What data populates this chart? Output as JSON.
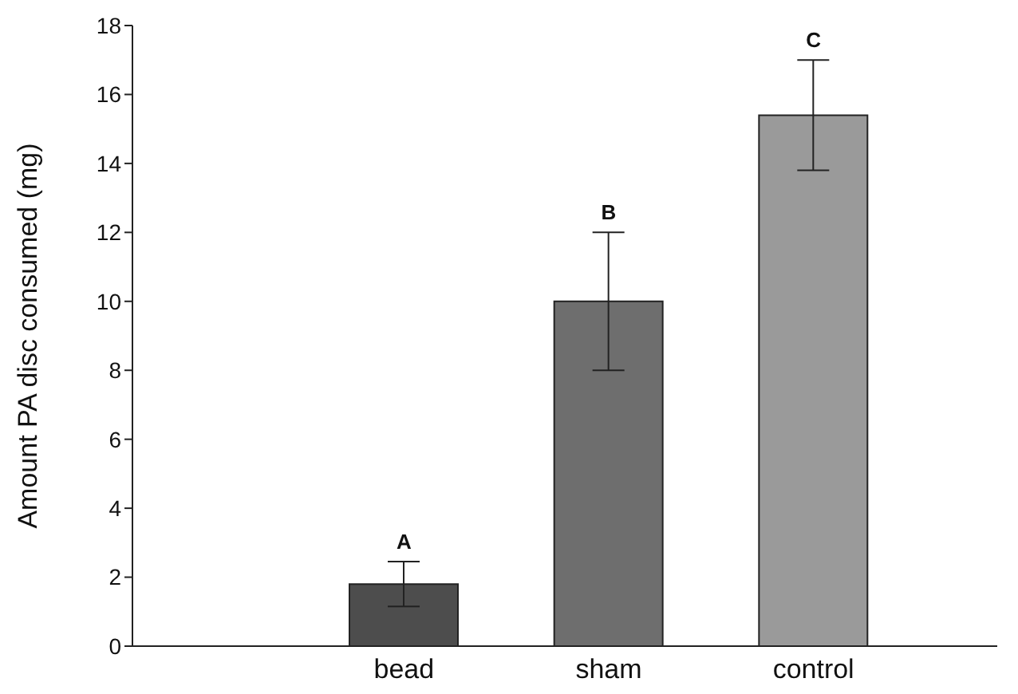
{
  "chart_data": {
    "type": "bar",
    "ylabel": "Amount PA disc consumed (mg)",
    "categories": [
      "bead",
      "sham",
      "control"
    ],
    "values": [
      1.8,
      10,
      15.4
    ],
    "colors": [
      "#4d4d4d",
      "#6e6e6e",
      "#9a9a9a"
    ],
    "errors": [
      [
        1.15,
        2.45
      ],
      [
        8,
        12
      ],
      [
        13.8,
        17
      ]
    ],
    "ylim": [
      0,
      18
    ],
    "yticks": [
      0,
      2,
      4,
      6,
      8,
      10,
      12,
      14,
      16,
      18
    ],
    "grid": false,
    "annotations": [
      {
        "text": "A",
        "x": "bead",
        "y": 2.45
      },
      {
        "text": "B",
        "x": "sham",
        "y": 12
      },
      {
        "text": "C",
        "x": "control",
        "y": 17
      }
    ]
  }
}
